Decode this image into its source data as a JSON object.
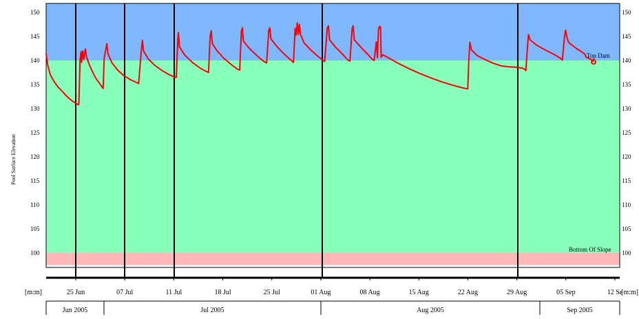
{
  "chart_data": {
    "type": "line",
    "ylabel": "Pool Surface Elevation",
    "y_ticks": [
      "150",
      "145",
      "140",
      "135",
      "130",
      "125",
      "120",
      "115",
      "110",
      "105",
      "100"
    ],
    "ylim": [
      97,
      152
    ],
    "zones": [
      {
        "from": 97.5,
        "to": 100,
        "color": "#ffb8b8"
      },
      {
        "from": 100,
        "to": 140,
        "color": "#88ffbb"
      },
      {
        "from": 140,
        "to": 152,
        "color": "#7fb8ff"
      }
    ],
    "annotations": [
      {
        "text": "Top Dam",
        "x": 70.2,
        "y": 140.6
      },
      {
        "text": "Bottom Of Slope",
        "x": 69.0,
        "y": 100.5
      }
    ],
    "x_ticks": [
      {
        "x": 0,
        "label": "[m:m]"
      },
      {
        "x": 5,
        "label": "25 Jun"
      },
      {
        "x": 12,
        "label": "07 Jul"
      },
      {
        "x": 19,
        "label": "11 Jul"
      },
      {
        "x": 26,
        "label": "18 Jul"
      },
      {
        "x": 33,
        "label": "25 Jul"
      },
      {
        "x": 40,
        "label": "01 Aug"
      },
      {
        "x": 47,
        "label": "08 Aug"
      },
      {
        "x": 54,
        "label": "15 Aug"
      },
      {
        "x": 61,
        "label": "22 Aug"
      },
      {
        "x": 68,
        "label": "29 Aug"
      },
      {
        "x": 75,
        "label": "05 Sep"
      },
      {
        "x": 82,
        "label": "12 Se"
      },
      {
        "x": 82.8,
        "label": "[m:m]"
      }
    ],
    "vlines": [
      3.8,
      10.8,
      17.8,
      39.6,
      67.9
    ],
    "months": [
      {
        "label": "Jun 2005",
        "from": 0.3,
        "to": 8.4
      },
      {
        "label": "Jul 2005",
        "from": 8.4,
        "to": 39.6
      },
      {
        "label": "Aug 2005",
        "from": 39.6,
        "to": 70.7
      },
      {
        "label": "Sep 2005",
        "from": 70.7,
        "to": 80.4
      }
    ],
    "series": [
      {
        "color": "#ff0000",
        "points": [
          [
            0,
            141.5
          ],
          [
            0.3,
            139
          ],
          [
            0.8,
            137
          ],
          [
            1.5,
            135.6
          ],
          [
            2.2,
            134.5
          ],
          [
            3,
            133.6
          ],
          [
            3.8,
            132.6
          ],
          [
            4.6,
            131.8
          ],
          [
            5.4,
            131.2
          ],
          [
            6,
            130.8
          ],
          [
            6.1,
            131.2
          ],
          [
            6.3,
            140
          ],
          [
            6.5,
            141.8
          ],
          [
            6.6,
            139.6
          ],
          [
            6.8,
            142
          ],
          [
            7,
            140.2
          ],
          [
            7.3,
            142.4
          ],
          [
            7.5,
            140.8
          ],
          [
            8,
            139.2
          ],
          [
            8.6,
            137.7
          ],
          [
            9.2,
            136.4
          ],
          [
            9.9,
            135.3
          ],
          [
            10.4,
            134.5
          ],
          [
            10.6,
            134.2
          ],
          [
            10.8,
            140.5
          ],
          [
            11.3,
            143.5
          ],
          [
            11.5,
            141.4
          ],
          [
            12.2,
            139.6
          ],
          [
            13.3,
            138
          ],
          [
            14.4,
            136.9
          ],
          [
            15.7,
            136
          ],
          [
            16.7,
            135.5
          ],
          [
            17.2,
            135.2
          ],
          [
            17.7,
            142
          ],
          [
            17.9,
            144.2
          ],
          [
            18.1,
            142
          ],
          [
            19,
            140.3
          ],
          [
            20.2,
            139
          ],
          [
            21.7,
            137.8
          ],
          [
            22.8,
            137.1
          ],
          [
            23.6,
            136.7
          ],
          [
            24.2,
            136.5
          ],
          [
            24.5,
            144.5
          ],
          [
            24.6,
            145.8
          ],
          [
            24.8,
            142.8
          ],
          [
            25.8,
            141.1
          ],
          [
            27.2,
            139.6
          ],
          [
            28.8,
            138.3
          ],
          [
            30,
            137.6
          ],
          [
            30.2,
            137.5
          ],
          [
            30.5,
            145
          ],
          [
            30.7,
            146.2
          ],
          [
            30.9,
            143.5
          ],
          [
            31.8,
            142
          ],
          [
            33,
            140.5
          ],
          [
            34.6,
            139
          ],
          [
            35.6,
            138.2
          ],
          [
            36,
            138
          ],
          [
            36.3,
            146
          ],
          [
            36.5,
            146.8
          ],
          [
            36.7,
            144
          ],
          [
            37.8,
            142.5
          ],
          [
            39.4,
            140.8
          ],
          [
            40.5,
            139.8
          ],
          [
            41,
            139.5
          ],
          [
            41.4,
            146.3
          ],
          [
            41.6,
            146.8
          ],
          [
            41.8,
            144.5
          ],
          [
            43,
            142.8
          ],
          [
            44.4,
            141.2
          ],
          [
            45.6,
            140
          ],
          [
            46,
            139.6
          ],
          [
            46.3,
            146.7
          ],
          [
            46.5,
            145.3
          ],
          [
            46.7,
            147.8
          ],
          [
            46.9,
            145.4
          ],
          [
            47.1,
            147.5
          ],
          [
            47.3,
            145.4
          ],
          [
            48,
            143.6
          ],
          [
            49.2,
            142.2
          ],
          [
            50.4,
            141
          ],
          [
            51.4,
            140.1
          ],
          [
            51.8,
            139.8
          ],
          [
            52.3,
            146.8
          ],
          [
            52.5,
            147.2
          ],
          [
            52.7,
            144.3
          ],
          [
            53.8,
            142.8
          ],
          [
            55.2,
            141.2
          ],
          [
            56.2,
            140
          ],
          [
            56.5,
            139.9
          ],
          [
            56.9,
            146.6
          ],
          [
            57.1,
            147.2
          ],
          [
            57.3,
            144.3
          ],
          [
            58.5,
            142.8
          ],
          [
            59.8,
            141.3
          ],
          [
            60.6,
            140.3
          ],
          [
            61,
            140
          ],
          [
            61.4,
            143.9
          ],
          [
            61.6,
            140.6
          ],
          [
            61.8,
            146.4
          ],
          [
            62,
            147.1
          ],
          [
            62.2,
            146.9
          ],
          [
            62.3,
            140.7
          ],
          [
            62.6,
            141.2
          ],
          [
            63.6,
            140.6
          ],
          [
            65.5,
            139.4
          ],
          [
            67.5,
            138.3
          ],
          [
            69.5,
            137.3
          ],
          [
            71.5,
            136.4
          ],
          [
            73.5,
            135.6
          ],
          [
            75.5,
            134.9
          ],
          [
            77.5,
            134.3
          ],
          [
            78.4,
            134.1
          ],
          [
            78.6,
            140
          ],
          [
            78.8,
            143.8
          ],
          [
            79.1,
            142.2
          ],
          [
            80.2,
            141
          ],
          [
            81.8,
            140.1
          ],
          [
            83.2,
            139.4
          ],
          [
            84.6,
            138.9
          ],
          [
            86,
            138.7
          ],
          [
            87.4,
            138.6
          ],
          [
            88.6,
            138.4
          ],
          [
            89,
            138.2
          ],
          [
            89.2,
            137.9
          ],
          [
            89.5,
            142.5
          ],
          [
            89.7,
            145.4
          ],
          [
            90,
            144.3
          ],
          [
            91.2,
            143.2
          ],
          [
            92.8,
            142.2
          ],
          [
            94.4,
            141.3
          ],
          [
            95.6,
            140.5
          ],
          [
            96,
            140.1
          ],
          [
            96.4,
            145
          ],
          [
            96.6,
            146.3
          ],
          [
            96.9,
            144.6
          ],
          [
            97.2,
            143.7
          ],
          [
            98.6,
            142.5
          ],
          [
            99.6,
            141.8
          ],
          [
            100.2,
            141.3
          ],
          [
            100.4,
            140.7
          ],
          [
            101,
            140.4
          ],
          [
            101.6,
            140.1
          ],
          [
            101.8,
            139.7
          ]
        ]
      }
    ]
  }
}
